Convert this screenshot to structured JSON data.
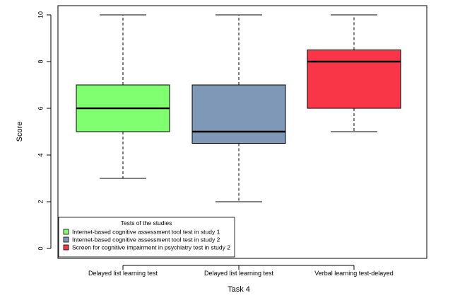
{
  "chart_data": {
    "type": "boxplot",
    "title": "",
    "xlabel": "Task 4",
    "ylabel": "Score",
    "ylim": [
      0,
      10
    ],
    "yticks": [
      0,
      2,
      4,
      6,
      8,
      10
    ],
    "grid": false,
    "legend_position": "bottom-left",
    "categories": [
      "Delayed list learning test",
      "Delayed list learning test",
      "Verbal learning test-delayed"
    ],
    "boxes": [
      {
        "min": 3,
        "q1": 5,
        "median": 6,
        "q3": 7,
        "max": 10,
        "color": "#80ff70"
      },
      {
        "min": 2,
        "q1": 4.5,
        "median": 5,
        "q3": 7,
        "max": 10,
        "color": "#7f98b7"
      },
      {
        "min": 5,
        "q1": 6,
        "median": 8,
        "q3": 8.5,
        "max": 10,
        "color": "#f83648"
      }
    ],
    "legend": {
      "title": "Tests of the studies",
      "entries": [
        {
          "label": "Internet-based cognitive assessment tool test in study 1",
          "color": "#80ff70"
        },
        {
          "label": "Internet-based cognitive assessment tool test in study 2",
          "color": "#7f98b7"
        },
        {
          "label": "Screen for cognitive impairment in psychiatry test in study 2",
          "color": "#f83648"
        }
      ]
    }
  }
}
